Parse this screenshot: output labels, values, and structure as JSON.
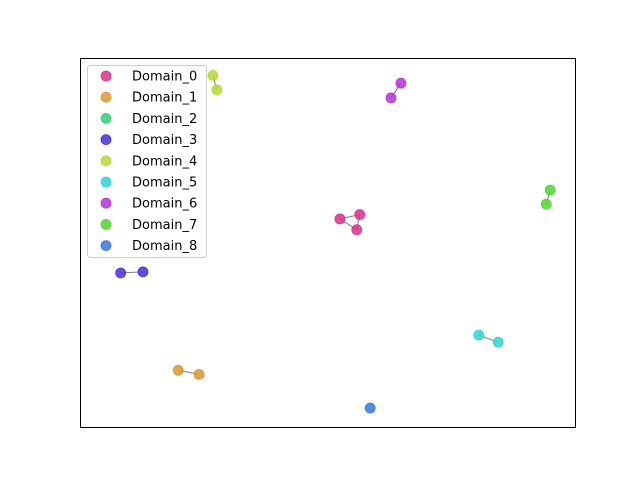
{
  "chart_data": {
    "type": "scatter",
    "title": "",
    "xlabel": "",
    "ylabel": "",
    "axes_ticks_visible": false,
    "grid": false,
    "legend_placement": "top-left",
    "xlim": [
      0,
      100
    ],
    "ylim": [
      0,
      100
    ],
    "series": [
      {
        "name": "Domain_0",
        "color": "#d9338f",
        "points": [
          [
            52.4,
            56.5
          ],
          [
            56.4,
            57.7
          ],
          [
            55.8,
            53.6
          ]
        ],
        "edges": [
          [
            0,
            1
          ],
          [
            0,
            2
          ],
          [
            1,
            2
          ]
        ]
      },
      {
        "name": "Domain_1",
        "color": "#dd962f",
        "points": [
          [
            19.8,
            15.6
          ],
          [
            24.0,
            14.5
          ]
        ],
        "edges": [
          [
            0,
            1
          ]
        ]
      },
      {
        "name": "Domain_2",
        "color": "#33d17a",
        "points": [],
        "edges": []
      },
      {
        "name": "Domain_3",
        "color": "#4b2fd6",
        "points": [
          [
            8.2,
            41.9
          ],
          [
            12.7,
            42.2
          ]
        ],
        "edges": [
          [
            0,
            1
          ]
        ]
      },
      {
        "name": "Domain_4",
        "color": "#b6d936",
        "points": [
          [
            26.8,
            95.3
          ],
          [
            27.6,
            91.4
          ]
        ],
        "edges": [
          [
            0,
            1
          ]
        ]
      },
      {
        "name": "Domain_5",
        "color": "#33d3d3",
        "points": [
          [
            80.4,
            25.1
          ],
          [
            84.3,
            23.2
          ]
        ],
        "edges": [
          [
            0,
            1
          ]
        ]
      },
      {
        "name": "Domain_6",
        "color": "#b433d6",
        "points": [
          [
            64.7,
            93.2
          ],
          [
            62.7,
            89.2
          ]
        ],
        "edges": [
          [
            0,
            1
          ]
        ]
      },
      {
        "name": "Domain_7",
        "color": "#4fd633",
        "points": [
          [
            94.8,
            64.3
          ],
          [
            94.0,
            60.5
          ]
        ],
        "edges": [
          [
            0,
            1
          ]
        ]
      },
      {
        "name": "Domain_8",
        "color": "#3a78d6",
        "points": [
          [
            58.5,
            5.4
          ]
        ],
        "edges": []
      }
    ]
  }
}
